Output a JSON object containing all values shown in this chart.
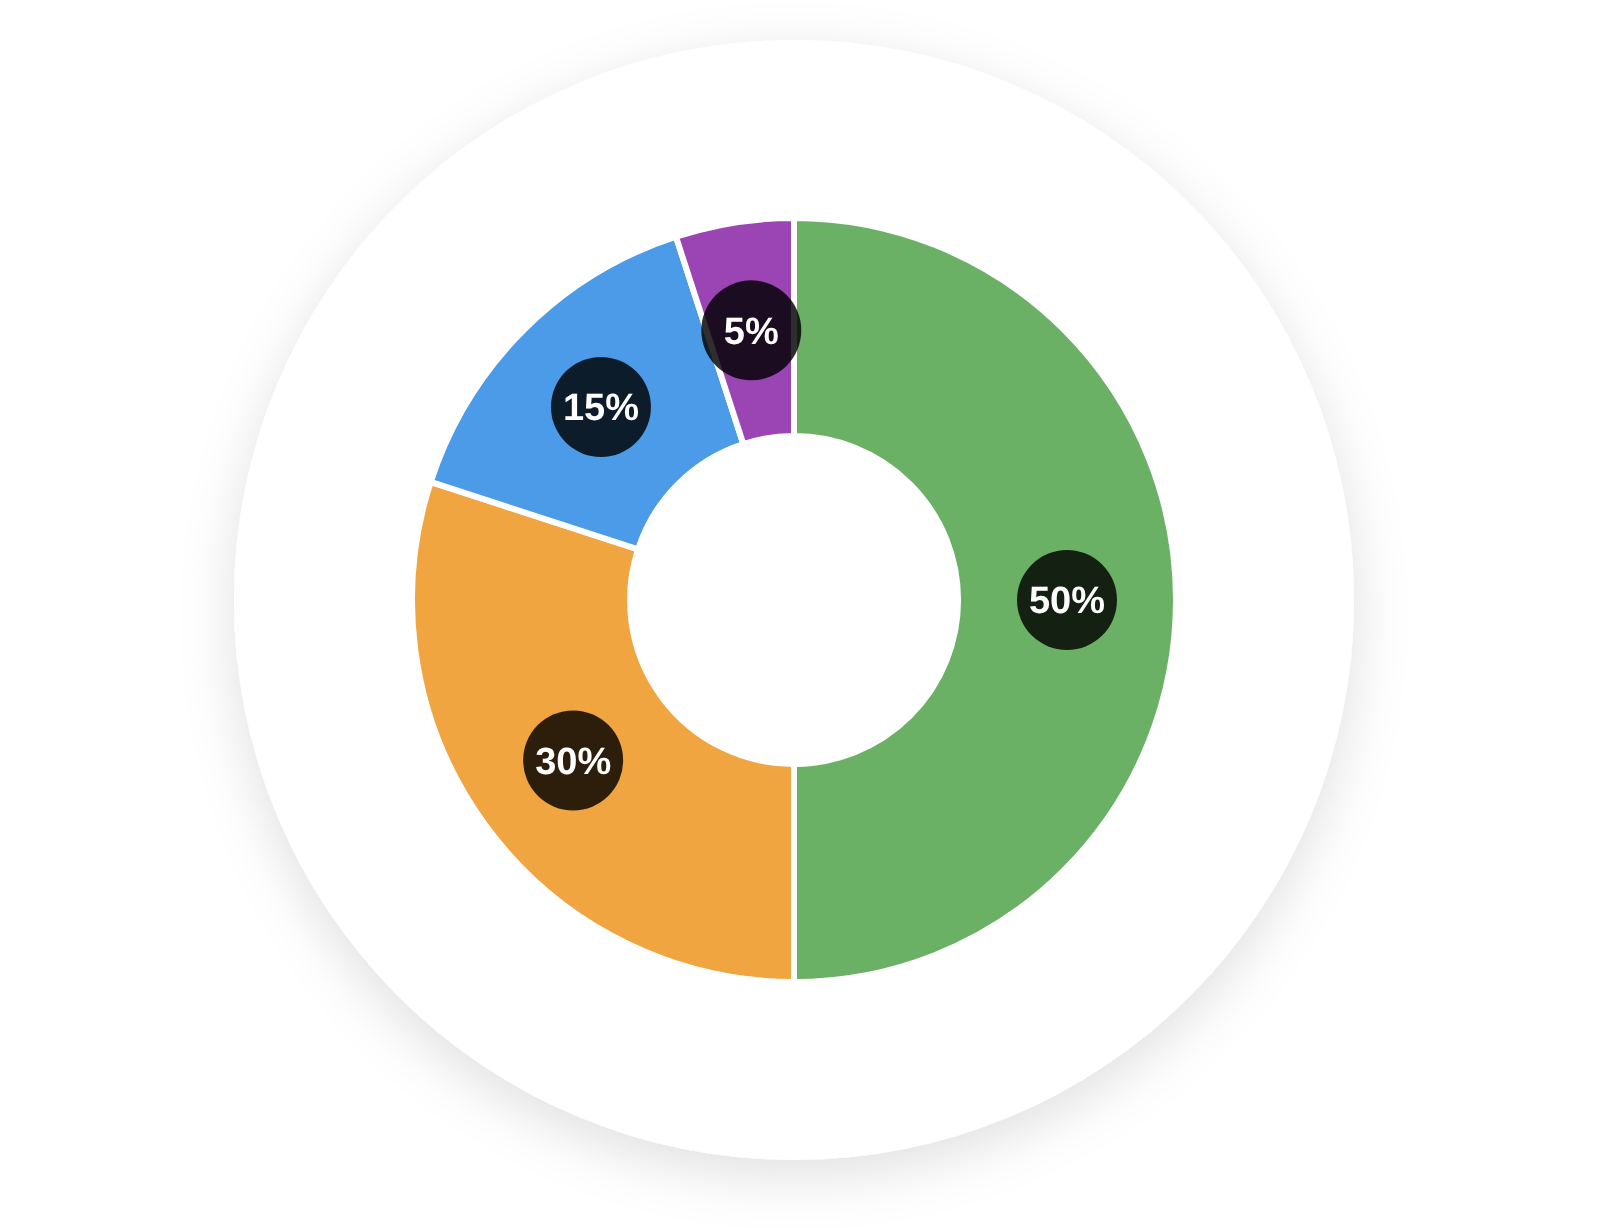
{
  "chart_data": {
    "type": "donut",
    "categories": [
      null,
      null,
      null,
      null
    ],
    "values": [
      50,
      30,
      15,
      5
    ],
    "colors": [
      "#6ab165",
      "#f0a540",
      "#4b9be8",
      "#9b45b5"
    ],
    "value_labels": [
      "50%",
      "30%",
      "15%",
      "5%"
    ]
  }
}
